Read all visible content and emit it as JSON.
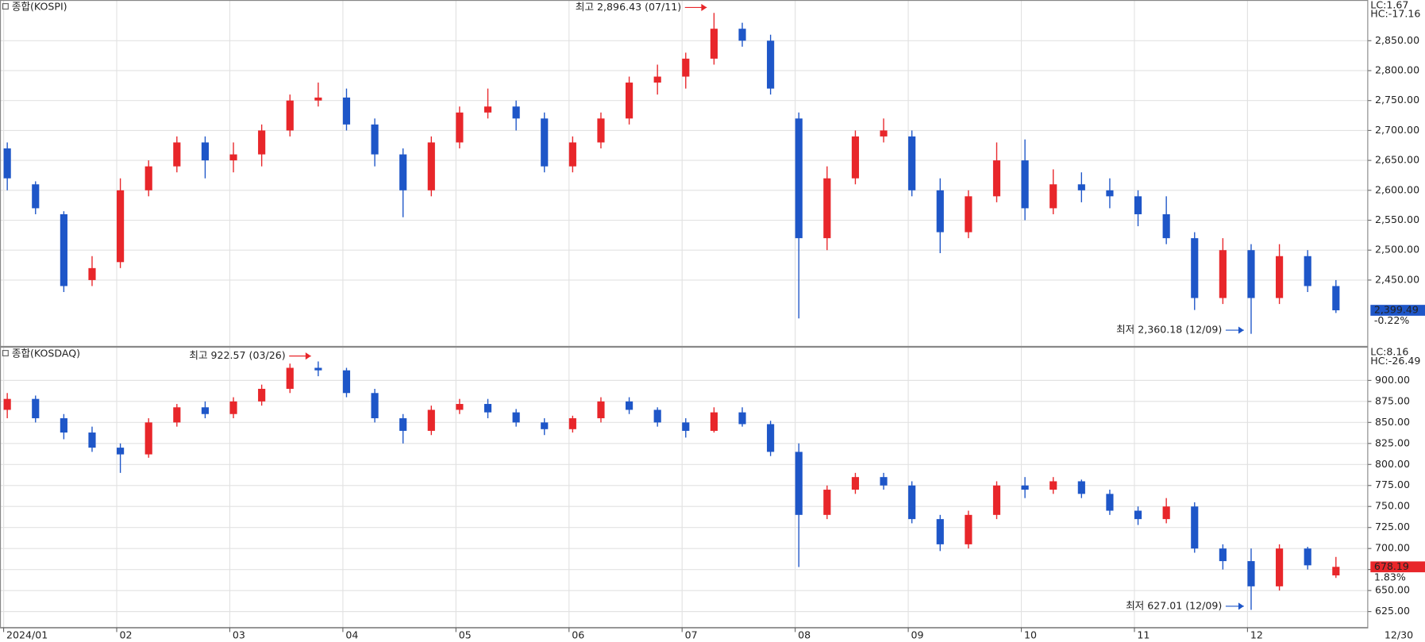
{
  "chart_data": [
    {
      "type": "candlestick",
      "title": "종합(KOSPI)",
      "lc_label": "LC:1.67",
      "hc_label": "HC:-17.16",
      "high_label": "최고 2,896.43 (07/11)",
      "low_label": "최저 2,360.18 (12/09)",
      "last_label": "2,399.49",
      "change_label": "-0.22%",
      "up_color": "#e8262a",
      "down_color": "#1e56c8",
      "ylim": [
        2340,
        2918
      ],
      "yticks": [
        {
          "value": 2450,
          "label": "2,450.00"
        },
        {
          "value": 2500,
          "label": "2,500.00"
        },
        {
          "value": 2550,
          "label": "2,550.00"
        },
        {
          "value": 2600,
          "label": "2,600.00"
        },
        {
          "value": 2650,
          "label": "2,650.00"
        },
        {
          "value": 2700,
          "label": "2,700.00"
        },
        {
          "value": 2750,
          "label": "2,750.00"
        },
        {
          "value": 2800,
          "label": "2,800.00"
        },
        {
          "value": 2850,
          "label": "2,850.00"
        }
      ],
      "open": [
        2670,
        2610,
        2560,
        2450,
        2480,
        2600,
        2640,
        2680,
        2650,
        2660,
        2700,
        2750,
        2755,
        2710,
        2660,
        2600,
        2680,
        2730,
        2740,
        2720,
        2640,
        2680,
        2720,
        2780,
        2790,
        2820,
        2870,
        2850,
        2720,
        2520,
        2620,
        2690,
        2690,
        2600,
        2530,
        2590,
        2650,
        2570,
        2610,
        2600,
        2590,
        2560,
        2520,
        2420,
        2500,
        2420,
        2490,
        2440
      ],
      "high": [
        2680,
        2615,
        2565,
        2490,
        2620,
        2650,
        2690,
        2690,
        2680,
        2710,
        2760,
        2780,
        2770,
        2720,
        2670,
        2690,
        2740,
        2770,
        2750,
        2730,
        2690,
        2730,
        2790,
        2810,
        2830,
        2896.43,
        2880,
        2860,
        2730,
        2640,
        2700,
        2720,
        2700,
        2620,
        2600,
        2680,
        2685,
        2635,
        2630,
        2620,
        2600,
        2590,
        2530,
        2520,
        2510,
        2510,
        2500,
        2450
      ],
      "low": [
        2600,
        2560,
        2430,
        2440,
        2470,
        2590,
        2630,
        2620,
        2630,
        2640,
        2690,
        2740,
        2700,
        2640,
        2555,
        2590,
        2670,
        2720,
        2700,
        2630,
        2630,
        2670,
        2710,
        2760,
        2770,
        2810,
        2840,
        2760,
        2386,
        2500,
        2610,
        2680,
        2590,
        2495,
        2520,
        2580,
        2550,
        2560,
        2580,
        2570,
        2540,
        2510,
        2400,
        2410,
        2360.18,
        2410,
        2430,
        2395
      ],
      "close": [
        2620,
        2570,
        2440,
        2470,
        2600,
        2640,
        2680,
        2650,
        2660,
        2700,
        2750,
        2755,
        2710,
        2660,
        2600,
        2680,
        2730,
        2740,
        2720,
        2640,
        2680,
        2720,
        2780,
        2790,
        2820,
        2870,
        2850,
        2770,
        2520,
        2620,
        2690,
        2700,
        2600,
        2530,
        2590,
        2650,
        2570,
        2610,
        2600,
        2590,
        2560,
        2520,
        2420,
        2500,
        2420,
        2490,
        2440,
        2399.49
      ]
    },
    {
      "type": "candlestick",
      "title": "종합(KOSDAQ)",
      "lc_label": "LC:8.16",
      "hc_label": "HC:-26.49",
      "high_label": "최고 922.57 (03/26)",
      "low_label": "최저 627.01 (12/09)",
      "last_label": "678.19",
      "change_label": "1.83%",
      "up_color": "#e8262a",
      "down_color": "#1e56c8",
      "ylim": [
        606,
        940
      ],
      "yticks": [
        {
          "value": 625,
          "label": "625.00"
        },
        {
          "value": 650,
          "label": "650.00"
        },
        {
          "value": 675,
          "label": "675.00"
        },
        {
          "value": 700,
          "label": "700.00"
        },
        {
          "value": 725,
          "label": "725.00"
        },
        {
          "value": 750,
          "label": "750.00"
        },
        {
          "value": 775,
          "label": "775.00"
        },
        {
          "value": 800,
          "label": "800.00"
        },
        {
          "value": 825,
          "label": "825.00"
        },
        {
          "value": 850,
          "label": "850.00"
        },
        {
          "value": 875,
          "label": "875.00"
        },
        {
          "value": 900,
          "label": "900.00"
        }
      ],
      "categories": [
        "2024/01",
        null,
        null,
        null,
        "02",
        null,
        null,
        null,
        "03",
        null,
        null,
        null,
        "04",
        null,
        null,
        null,
        "05",
        null,
        null,
        null,
        "06",
        null,
        null,
        null,
        "07",
        null,
        null,
        null,
        "08",
        null,
        null,
        null,
        "09",
        null,
        null,
        null,
        "10",
        null,
        null,
        null,
        "11",
        null,
        null,
        null,
        "12",
        null,
        null,
        null
      ],
      "x_end_label": "12/30",
      "open": [
        865,
        878,
        855,
        838,
        820,
        812,
        850,
        868,
        860,
        875,
        890,
        915,
        912,
        885,
        855,
        840,
        865,
        872,
        862,
        850,
        842,
        855,
        875,
        865,
        850,
        840,
        862,
        848,
        815,
        740,
        770,
        785,
        775,
        735,
        705,
        740,
        775,
        770,
        780,
        765,
        745,
        735,
        750,
        700,
        685,
        655,
        700,
        668
      ],
      "high": [
        885,
        882,
        860,
        845,
        825,
        855,
        872,
        875,
        880,
        895,
        920,
        922.57,
        915,
        890,
        860,
        870,
        878,
        878,
        866,
        855,
        858,
        880,
        880,
        868,
        855,
        868,
        868,
        852,
        825,
        775,
        790,
        790,
        780,
        740,
        745,
        780,
        785,
        785,
        782,
        770,
        750,
        760,
        755,
        705,
        700,
        705,
        702,
        690
      ],
      "low": [
        855,
        850,
        830,
        815,
        790,
        808,
        845,
        855,
        855,
        870,
        885,
        905,
        880,
        850,
        825,
        835,
        860,
        855,
        845,
        835,
        838,
        850,
        860,
        845,
        832,
        838,
        845,
        810,
        678,
        735,
        765,
        770,
        730,
        697,
        700,
        735,
        760,
        765,
        760,
        740,
        728,
        730,
        695,
        675,
        627.01,
        650,
        675,
        665
      ],
      "close": [
        878,
        855,
        838,
        820,
        812,
        850,
        868,
        860,
        875,
        890,
        915,
        912,
        885,
        855,
        840,
        865,
        872,
        862,
        850,
        842,
        855,
        875,
        865,
        850,
        840,
        862,
        848,
        815,
        740,
        770,
        785,
        775,
        735,
        705,
        740,
        775,
        770,
        780,
        765,
        745,
        735,
        750,
        700,
        685,
        655,
        700,
        680,
        678.19
      ]
    }
  ]
}
